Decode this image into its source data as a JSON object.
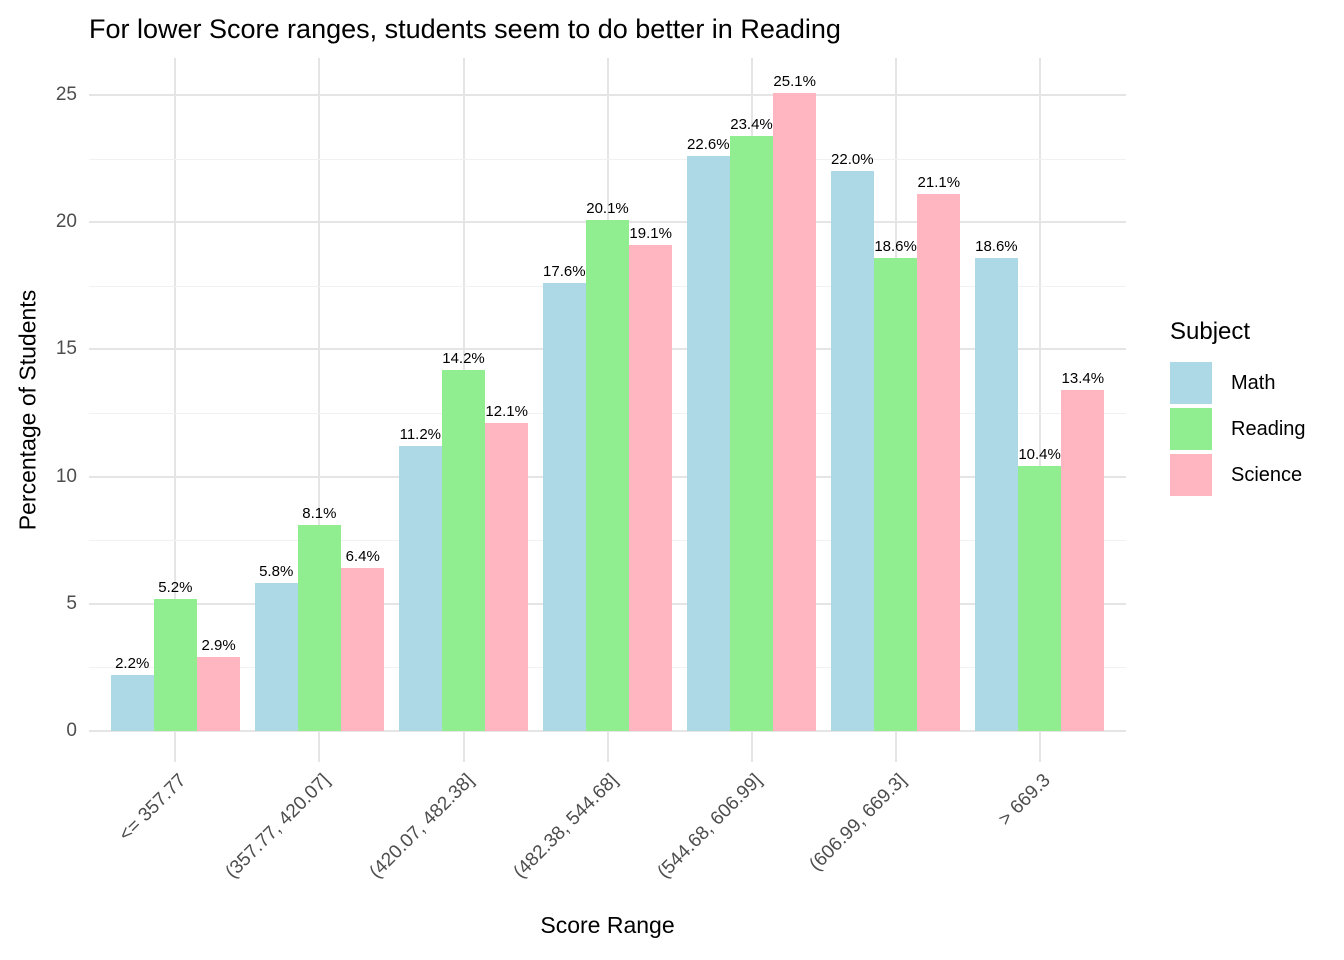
{
  "chart_data": {
    "type": "bar",
    "title": "For lower Score ranges, students seem to do better in Reading",
    "xlabel": "Score Range",
    "ylabel": "Percentage of Students",
    "legend_title": "Subject",
    "legend_position": "right",
    "grid": true,
    "categories": [
      "<= 357.77",
      "(357.77, 420.07]",
      "(420.07, 482.38]",
      "(482.38, 544.68]",
      "(544.68, 606.99]",
      "(606.99, 669.3]",
      "> 669.3"
    ],
    "series": [
      {
        "name": "Math",
        "color": "#ADD8E6",
        "values": [
          2.2,
          5.8,
          11.2,
          17.6,
          22.6,
          22.0,
          18.6
        ]
      },
      {
        "name": "Reading",
        "color": "#90EE90",
        "values": [
          5.2,
          8.1,
          14.2,
          20.1,
          23.4,
          18.6,
          10.4
        ]
      },
      {
        "name": "Science",
        "color": "#FFB6C1",
        "values": [
          2.9,
          6.4,
          12.1,
          19.1,
          25.1,
          21.1,
          13.4
        ]
      }
    ],
    "value_label_suffix": "%",
    "y_ticks": [
      0,
      5,
      10,
      15,
      20,
      25
    ],
    "y_minor_ticks": [
      2.5,
      7.5,
      12.5,
      17.5,
      22.5
    ],
    "ylim": [
      0,
      26.4
    ],
    "colors": {
      "grid_major": "#E5E5E5",
      "grid_minor": "#F1F1F1",
      "tick_label": "#4D4D4D",
      "text": "#000000",
      "background": "#FFFFFF"
    }
  }
}
